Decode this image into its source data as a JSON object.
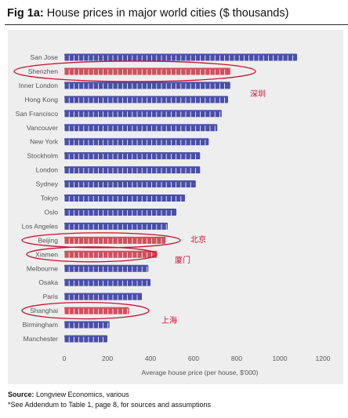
{
  "figure": {
    "title_prefix": "Fig 1a:",
    "title_text": "House prices in major world cities ($ thousands)",
    "source_label": "Source:",
    "source_text": "Longview Economics, various",
    "note": "*See Addendum to Table 1, page 8, for sources and assumptions"
  },
  "colors": {
    "bar_default": "#4a4fa8",
    "bar_highlight": "#d0505e",
    "ellipse": "#c8102e",
    "annotation": "#c8102e",
    "panel": "#eeeeef"
  },
  "chart_data": {
    "type": "bar",
    "orientation": "horizontal",
    "title": "House prices in major world cities ($ thousands)",
    "xlabel": "Average house price (per house, $'000)",
    "ylabel": "",
    "xlim": [
      0,
      1200
    ],
    "xticks": [
      0,
      200,
      400,
      600,
      800,
      1000,
      1200
    ],
    "grid": false,
    "categories": [
      "San Jose",
      "Shenzhen",
      "Inner London",
      "Hong Kong",
      "San Francisco",
      "Vancouver",
      "New York",
      "Stockholm",
      "London",
      "Sydney",
      "Tokyo",
      "Oslo",
      "Los Angeles",
      "Beijing",
      "Xiamen",
      "Melbourne",
      "Osaka",
      "Paris",
      "Shanghai",
      "Birmingham",
      "Manchester"
    ],
    "values": [
      1080,
      770,
      770,
      760,
      730,
      710,
      670,
      630,
      630,
      610,
      560,
      520,
      480,
      470,
      430,
      390,
      400,
      360,
      300,
      210,
      200
    ],
    "highlighted": [
      "Shenzhen",
      "Beijing",
      "Xiamen",
      "Shanghai"
    ],
    "annotations": [
      {
        "city": "Shenzhen",
        "text": "深圳"
      },
      {
        "city": "Beijing",
        "text": "北京"
      },
      {
        "city": "Xiamen",
        "text": "厦门"
      },
      {
        "city": "Shanghai",
        "text": "上海"
      }
    ]
  }
}
